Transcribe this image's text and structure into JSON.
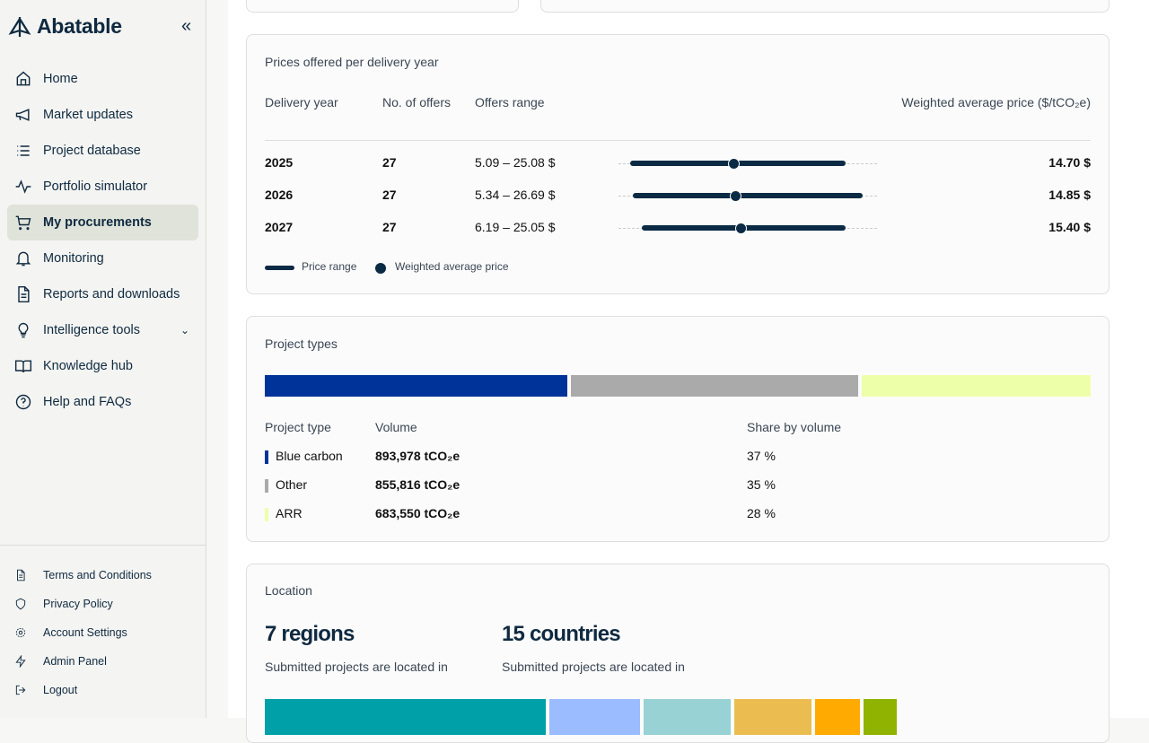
{
  "brand": {
    "name": "Abatable"
  },
  "sidebar": {
    "items": [
      {
        "label": "Home",
        "icon": "home-icon"
      },
      {
        "label": "Market updates",
        "icon": "megaphone-icon"
      },
      {
        "label": "Project database",
        "icon": "list-icon"
      },
      {
        "label": "Portfolio simulator",
        "icon": "activity-icon"
      },
      {
        "label": "My procurements",
        "icon": "cart-icon",
        "active": true
      },
      {
        "label": "Monitoring",
        "icon": "bell-icon"
      },
      {
        "label": "Reports and downloads",
        "icon": "document-icon"
      },
      {
        "label": "Intelligence tools",
        "icon": "lightbulb-icon"
      },
      {
        "label": "Knowledge hub",
        "icon": "book-icon"
      },
      {
        "label": "Help and FAQs",
        "icon": "help-icon"
      }
    ],
    "footer": [
      {
        "label": "Terms and Conditions",
        "icon": "document-icon"
      },
      {
        "label": "Privacy Policy",
        "icon": "shield-icon"
      },
      {
        "label": "Account Settings",
        "icon": "gear-icon"
      },
      {
        "label": "Admin Panel",
        "icon": "bolt-icon"
      },
      {
        "label": "Logout",
        "icon": "logout-icon"
      }
    ]
  },
  "prices": {
    "title": "Prices offered per delivery year",
    "headers": {
      "year": "Delivery year",
      "offers": "No. of offers",
      "range": "Offers range",
      "wap": "Weighted average price ($/tCO₂e)"
    },
    "rows": [
      {
        "year": "2025",
        "offers": "27",
        "range": "5.09 – 25.08 $",
        "wap": "14.70 $",
        "min": 5.09,
        "max": 25.08,
        "avg": 14.7
      },
      {
        "year": "2026",
        "offers": "27",
        "range": "5.34 – 26.69 $",
        "wap": "14.85 $",
        "min": 5.34,
        "max": 26.69,
        "avg": 14.85
      },
      {
        "year": "2027",
        "offers": "27",
        "range": "6.19 – 25.05 $",
        "wap": "15.40 $",
        "min": 6.19,
        "max": 25.05,
        "avg": 15.4
      }
    ],
    "legend": {
      "range": "Price range",
      "avg": "Weighted average price"
    },
    "color": "#0b2a44"
  },
  "types": {
    "title": "Project types",
    "headers": {
      "type": "Project type",
      "volume": "Volume",
      "share": "Share by volume"
    },
    "rows": [
      {
        "type": "Blue carbon",
        "volume": "893,978 tCO₂e",
        "share": "37 %",
        "pct": 37,
        "color": "#003399"
      },
      {
        "type": "Other",
        "volume": "855,816 tCO₂e",
        "share": "35 %",
        "pct": 35,
        "color": "#aaaaaa"
      },
      {
        "type": "ARR",
        "volume": "683,550 tCO₂e",
        "share": "28 %",
        "pct": 28,
        "color": "#eeffaa"
      }
    ]
  },
  "location": {
    "title": "Location",
    "regions": "7 regions",
    "regions_sub": "Submitted projects are located in",
    "countries": "15 countries",
    "countries_sub": "Submitted projects are located in",
    "bar_colors": [
      "#00a0a8",
      "#9bbcff",
      "#99d2d4",
      "#ebbd50",
      "#ffaa00",
      "#8fb300"
    ],
    "bar_shares": [
      34,
      11,
      10.5,
      9.4,
      5.4,
      4
    ]
  }
}
